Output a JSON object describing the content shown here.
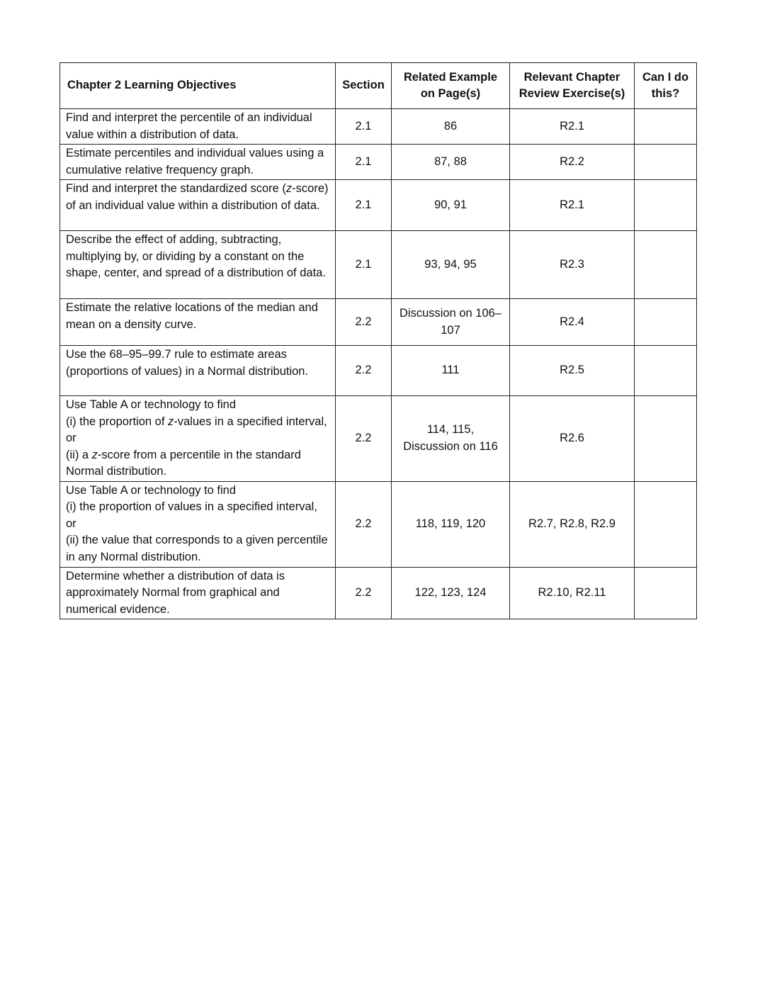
{
  "headers": {
    "objectives": "Chapter 2 Learning Objectives",
    "section": "Section",
    "example": "Related Example on Page(s)",
    "review": "Relevant Chapter Review Exercise(s)",
    "cando": "Can I do this?"
  },
  "rows": [
    {
      "objective": "Find and interpret the percentile of an individual value within a distribution of data.",
      "section": "2.1",
      "example": "86",
      "review": "R2.1",
      "cando": ""
    },
    {
      "objective": "Estimate percentiles and individual values using a cumulative relative frequency graph.",
      "section": "2.1",
      "example": "87, 88",
      "review": "R2.2",
      "cando": ""
    },
    {
      "objective": "Find and interpret the standardized score (z-score) of an individual value within a distribution of data.",
      "section": "2.1",
      "example": "90, 91",
      "review": "R2.1",
      "cando": ""
    },
    {
      "objective": "Describe the effect of adding, subtracting, multiplying by, or dividing by a constant on the shape, center, and spread of a distribution of data.",
      "section": "2.1",
      "example": "93, 94, 95",
      "review": "R2.3",
      "cando": ""
    },
    {
      "objective": "Estimate the relative locations of the median and mean on a density curve.",
      "section": "2.2",
      "example": "Discussion on 106–107",
      "review": "R2.4",
      "cando": ""
    },
    {
      "objective": "Use the 68–95–99.7 rule to estimate areas (proportions of values) in a Normal distribution.",
      "section": "2.2",
      "example": "111",
      "review": "R2.5",
      "cando": ""
    },
    {
      "objective": "Use Table A or technology to find\n(i) the proportion of z-values in a specified interval, or\n(ii) a z-score from a percentile in the standard Normal distribution.",
      "section": "2.2",
      "example": "114, 115, Discussion on 116",
      "review": "R2.6",
      "cando": ""
    },
    {
      "objective": "Use Table A or technology to find\n(i) the proportion of values in a specified interval, or\n(ii) the value that corresponds to a given percentile in any Normal distribution.",
      "section": "2.2",
      "example": "118, 119, 120",
      "review": "R2.7, R2.8, R2.9",
      "cando": ""
    },
    {
      "objective": "Determine whether a distribution of data is approximately Normal from graphical and numerical evidence.",
      "section": "2.2",
      "example": "122, 123, 124",
      "review": "R2.10, R2.11",
      "cando": ""
    }
  ]
}
